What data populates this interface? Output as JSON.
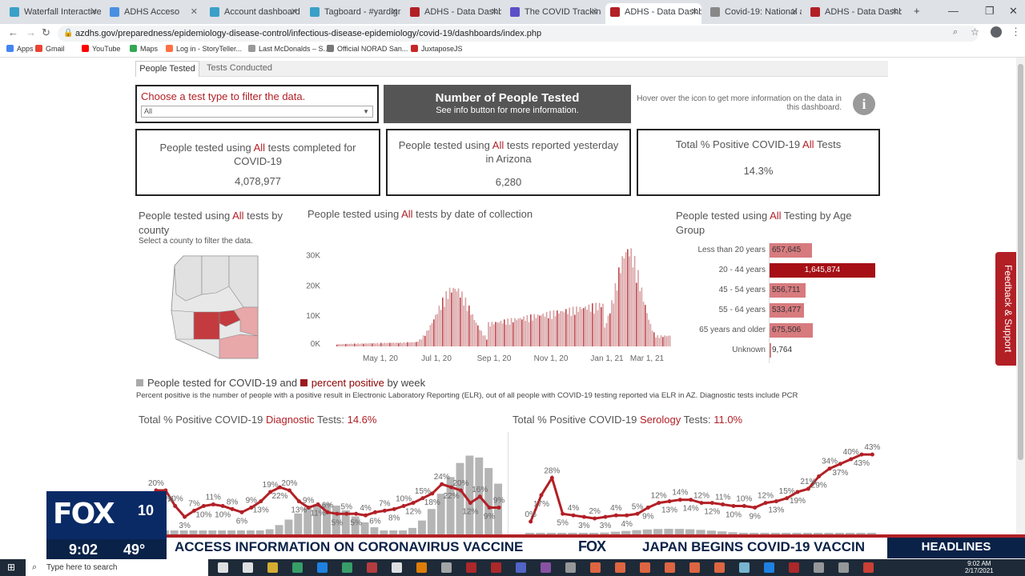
{
  "browser": {
    "tabs": [
      {
        "label": "Waterfall Interactive: #",
        "color": "#3aa0c8"
      },
      {
        "label": "ADHS Acceso",
        "color": "#4a90e2"
      },
      {
        "label": "Account dashboard",
        "color": "#3aa0c8"
      },
      {
        "label": "Tagboard - #yardigras",
        "color": "#3aa0c8"
      },
      {
        "label": "ADHS - Data Dashboa",
        "color": "#b22026"
      },
      {
        "label": "The COVID Tracking Pr",
        "color": "#5b4fc9"
      },
      {
        "label": "ADHS - Data Dashboa",
        "color": "#b22026"
      },
      {
        "label": "Covid-19: National and",
        "color": "#888888"
      },
      {
        "label": "ADHS - Data Dashboa",
        "color": "#b22026"
      }
    ],
    "url": "azdhs.gov/preparedness/epidemiology-disease-control/infectious-disease-epidemiology/covid-19/dashboards/index.php",
    "bookmarks": [
      "Apps",
      "Gmail",
      "YouTube",
      "Maps",
      "Log in - StoryTeller...",
      "Last McDonalds – S...",
      "Official NORAD San...",
      "JuxtaposeJS"
    ]
  },
  "dashboard": {
    "tabs": [
      "People Tested",
      "Tests Conducted"
    ],
    "filter_label": "Choose a test type to filter the data.",
    "filter_value": "All",
    "header_title": "Number of People Tested",
    "header_sub": "See info button for more information.",
    "info_text": "Hover over the icon to get more information on the data in this dashboard.",
    "kpi1_a": "People tested using ",
    "kpi1_b": "All",
    "kpi1_c": " tests completed for COVID-19",
    "kpi1_value": "4,078,977",
    "kpi2_a": "People tested using ",
    "kpi2_b": "All",
    "kpi2_c": " tests reported yesterday in Arizona",
    "kpi2_value": "6,280",
    "kpi3_a": "Total % Positive COVID-19 ",
    "kpi3_b": "All",
    "kpi3_c": " Tests",
    "kpi3_value": "14.3%",
    "county_a": "People tested using ",
    "county_b": "All",
    "county_c": " tests by county",
    "county_sub": "Select a county to filter the data.",
    "date_a": "People tested using ",
    "date_b": "All",
    "date_c": " tests by date of collection",
    "age_a": "People tested using ",
    "age_b": "All",
    "age_c": " Testing by Age Group",
    "weekly_a": "People tested for COVID-19",
    "weekly_and": " and ",
    "weekly_b": "percent positive",
    "weekly_c": " by week",
    "weekly_note": "Percent positive is the number of people with a positive result in Electronic Laboratory Reporting (ELR), out of all people with COVID-19 testing reported via ELR in AZ. Diagnostic tests include PCR",
    "diag_a": "Total % Positive COVID-19 ",
    "diag_b": "Diagnostic",
    "diag_c": " Tests: ",
    "diag_value": "14.6%",
    "sero_a": "Total % Positive COVID-19 ",
    "sero_b": "Serology",
    "sero_c": " Tests: ",
    "sero_value": "11.0%",
    "feedback": "Feedback & Support"
  },
  "chart_data": [
    {
      "type": "bar",
      "title": "People tested using All tests by date of collection",
      "y_ticks": [
        "0K",
        "10K",
        "20K",
        "30K"
      ],
      "x_ticks": [
        "May 1, 20",
        "Jul 1, 20",
        "Sep 1, 20",
        "Nov 1, 20",
        "Jan 1, 21",
        "Mar 1, 21"
      ],
      "ylim": [
        0,
        37000
      ],
      "grid": false
    },
    {
      "type": "bar",
      "title": "People tested using All Testing by Age Group",
      "categories": [
        "Less than 20 years",
        "20 - 44 years",
        "45 - 54 years",
        "55 - 64 years",
        "65 years and older",
        "Unknown"
      ],
      "values": [
        657645,
        1645874,
        556711,
        533477,
        675506,
        9764
      ],
      "labels": [
        "657,645",
        "1,645,874",
        "556,711",
        "533,477",
        "675,506",
        "9,764"
      ]
    },
    {
      "type": "line",
      "title": "Total % Positive COVID-19 Diagnostic Tests: 14.6%",
      "labels": [
        "20%",
        "20%",
        "10%",
        "3%",
        "7%",
        "10%",
        "11%",
        "10%",
        "8%",
        "6%",
        "9%",
        "13%",
        "19%",
        "22%",
        "20%",
        "13%",
        "9%",
        "11%",
        "6%",
        "5%",
        "5%",
        "5%",
        "4%",
        "6%",
        "7%",
        "8%",
        "10%",
        "12%",
        "15%",
        "18%",
        "24%",
        "22%",
        "20%",
        "12%",
        "16%",
        "9%",
        "9%"
      ]
    },
    {
      "type": "line",
      "title": "Total % Positive COVID-19 Serology Tests: 11.0%",
      "labels": [
        "0%",
        "17%",
        "28%",
        "5%",
        "4%",
        "3%",
        "2%",
        "3%",
        "4%",
        "4%",
        "5%",
        "9%",
        "12%",
        "13%",
        "14%",
        "14%",
        "12%",
        "12%",
        "11%",
        "10%",
        "10%",
        "9%",
        "12%",
        "13%",
        "15%",
        "19%",
        "21%",
        "29%",
        "34%",
        "37%",
        "40%",
        "43%",
        "43%"
      ]
    }
  ],
  "tv": {
    "logo": "FOX",
    "channel": "10",
    "time": "9:02",
    "temp": "49°",
    "ticker1": "ACCESS INFORMATION ON CORONAVIRUS VACCINE",
    "ticker_brand": "FOX",
    "ticker2": "JAPAN BEGINS COVID-19 VACCIN",
    "headlines": "HEADLINES"
  },
  "taskbar": {
    "search": "Type here to search",
    "time": "9:02 AM",
    "date": "2/17/2021"
  }
}
